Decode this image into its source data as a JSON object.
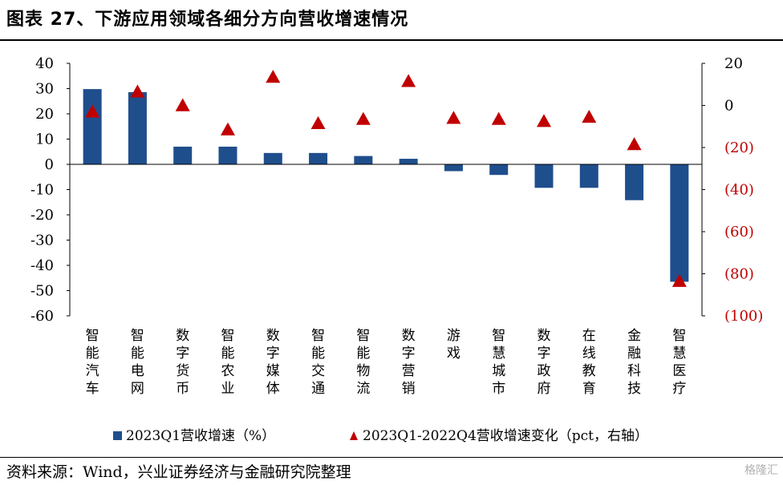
{
  "header": {
    "title": "图表 27、下游应用领域各细分方向营收增速情况"
  },
  "footer": {
    "source": "资料来源：Wind，兴业证券经济与金融研究院整理",
    "watermark": "格隆汇"
  },
  "colors": {
    "bar": "#1f4e8c",
    "marker": "#c00000",
    "right_negative_tick": "#c00000"
  },
  "chart_data": {
    "type": "bar",
    "categories": [
      "智能汽车",
      "智能电网",
      "数字货币",
      "智能农业",
      "数字媒体",
      "智能交通",
      "智能物流",
      "数字营销",
      "游戏",
      "智慧城市",
      "数字政府",
      "在线教育",
      "金融科技",
      "智慧医疗"
    ],
    "series": [
      {
        "name": "2023Q1营收增速（%）",
        "type": "bar",
        "axis": "left",
        "values": [
          29.8,
          28.6,
          7.0,
          7.0,
          4.5,
          4.5,
          3.3,
          2.2,
          -2.7,
          -4.2,
          -9.3,
          -9.3,
          -14.2,
          -46.5
        ]
      },
      {
        "name": "2023Q1-2022Q4营收增速变化（pct，右轴）",
        "type": "scatter",
        "axis": "right",
        "marker": "triangle",
        "values": [
          -3.0,
          6.5,
          0.0,
          -11.5,
          13.5,
          -8.5,
          -6.5,
          11.5,
          -6.0,
          -6.5,
          -7.5,
          -5.5,
          -18.5,
          -83.5
        ]
      }
    ],
    "y_left": {
      "ylim": [
        -60,
        40
      ],
      "ticks": [
        "40",
        "30",
        "20",
        "10",
        "0",
        "-10",
        "-20",
        "-30",
        "-40",
        "-50",
        "-60"
      ]
    },
    "y_right": {
      "ylim": [
        -100,
        20
      ],
      "ticks": [
        "20",
        "0",
        "(20)",
        "(40)",
        "(60)",
        "(80)",
        "(100)"
      ]
    },
    "legend": {
      "position": "bottom"
    },
    "grid": false
  }
}
